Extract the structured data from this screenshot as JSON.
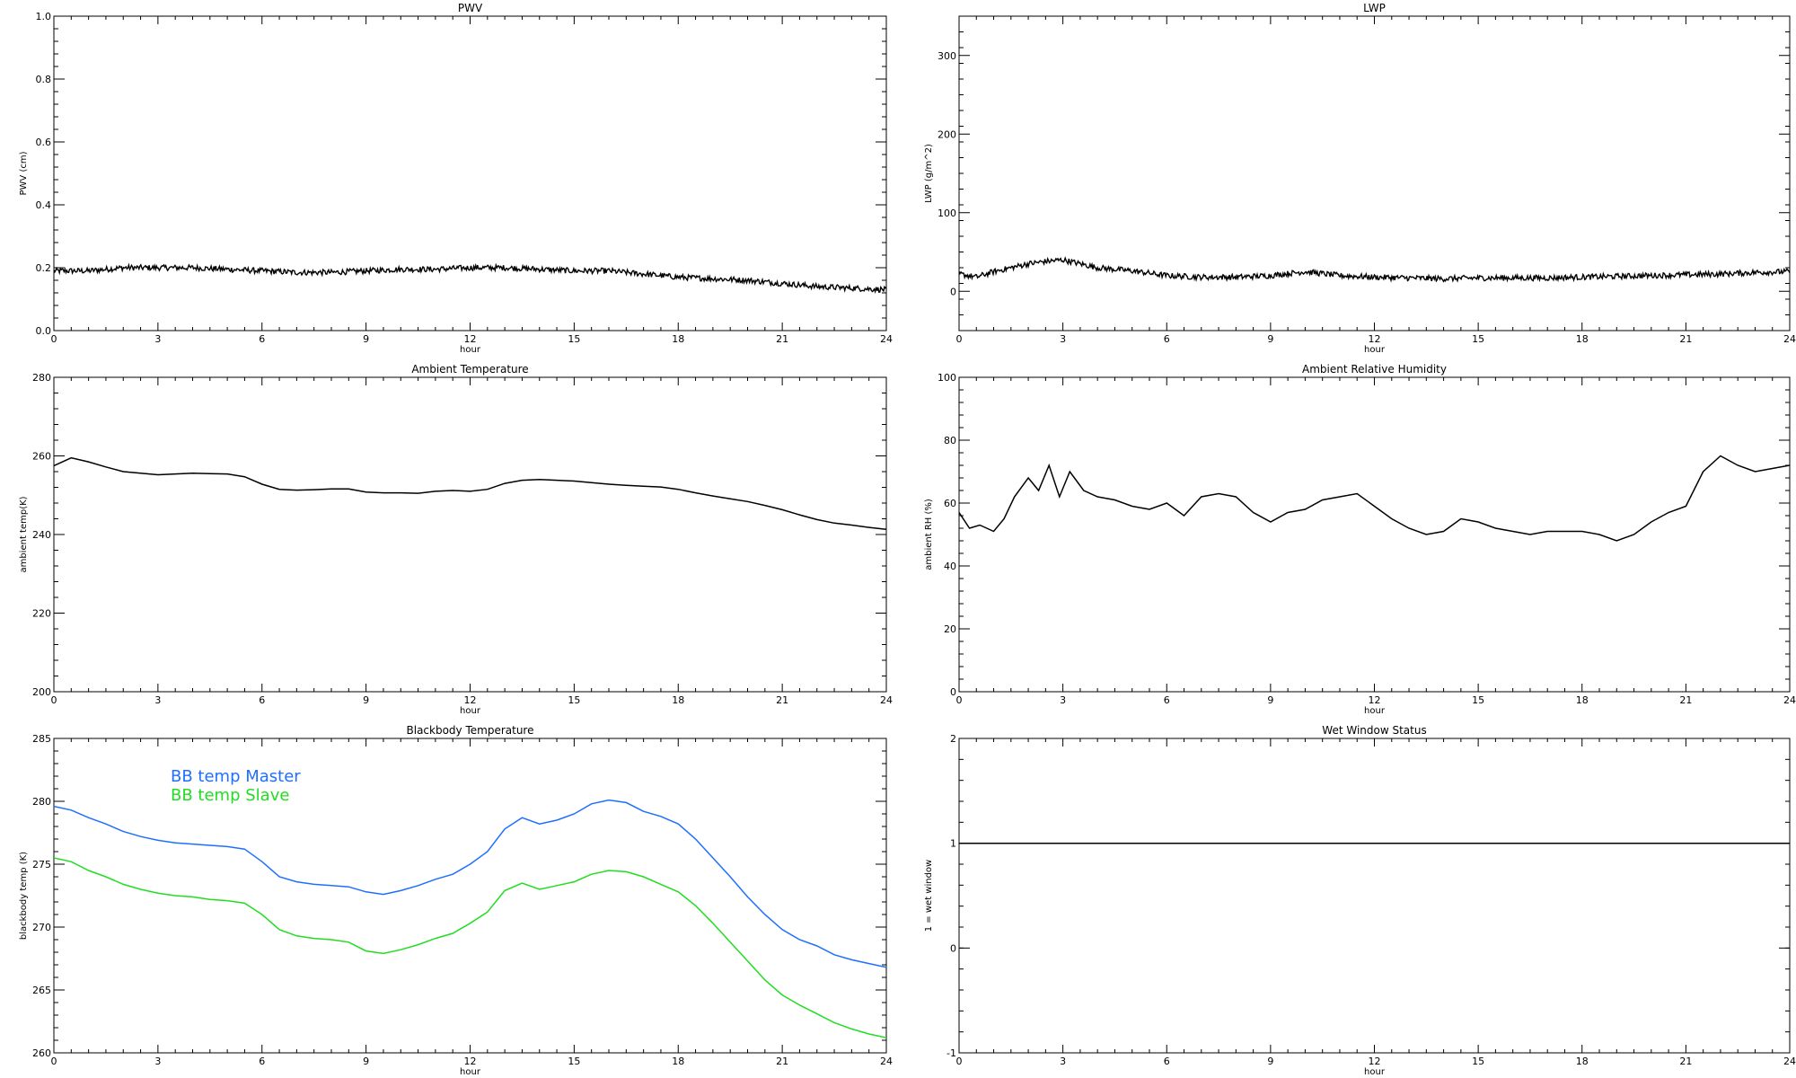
{
  "chart_data": [
    {
      "type": "line",
      "title": "PWV",
      "xlabel": "hour",
      "ylabel": "PWV (cm)",
      "xlim": [
        0,
        24
      ],
      "ylim": [
        0,
        1.0
      ],
      "xticks": [
        "0",
        "3",
        "6",
        "9",
        "12",
        "15",
        "18",
        "21",
        "24"
      ],
      "yticks": [
        "0.0",
        "0.2",
        "0.4",
        "0.6",
        "0.8",
        "1.0"
      ],
      "noisy": true,
      "series": [
        {
          "color": "#000000",
          "x": [
            0,
            1,
            2,
            3,
            4,
            5,
            6,
            7,
            8,
            9,
            10,
            11,
            12,
            13,
            14,
            15,
            16,
            17,
            18,
            19,
            20,
            21,
            22,
            23,
            24
          ],
          "y": [
            0.19,
            0.19,
            0.2,
            0.2,
            0.2,
            0.195,
            0.19,
            0.185,
            0.185,
            0.19,
            0.195,
            0.195,
            0.2,
            0.2,
            0.195,
            0.19,
            0.19,
            0.18,
            0.17,
            0.165,
            0.16,
            0.15,
            0.14,
            0.135,
            0.13
          ]
        }
      ]
    },
    {
      "type": "line",
      "title": "LWP",
      "xlabel": "hour",
      "ylabel": "LWP (g/m^2)",
      "xlim": [
        0,
        24
      ],
      "ylim": [
        -50,
        350
      ],
      "xticks": [
        "0",
        "3",
        "6",
        "9",
        "12",
        "15",
        "18",
        "21",
        "24"
      ],
      "yticks": [
        "0",
        "100",
        "200",
        "300"
      ],
      "noisy": true,
      "series": [
        {
          "color": "#000000",
          "x": [
            0,
            0.5,
            1,
            1.5,
            2,
            2.5,
            3,
            3.5,
            4,
            5,
            6,
            7,
            8,
            9,
            10,
            11,
            12,
            13,
            14,
            15,
            16,
            17,
            18,
            19,
            20,
            21,
            22,
            23,
            24
          ],
          "y": [
            22,
            18,
            25,
            30,
            35,
            38,
            40,
            35,
            30,
            26,
            20,
            18,
            18,
            20,
            25,
            20,
            18,
            17,
            16,
            17,
            17,
            17,
            18,
            19,
            20,
            21,
            22,
            24,
            25
          ]
        }
      ]
    },
    {
      "type": "line",
      "title": "Ambient Temperature",
      "xlabel": "hour",
      "ylabel": "ambient temp(K)",
      "xlim": [
        0,
        24
      ],
      "ylim": [
        200,
        280
      ],
      "xticks": [
        "0",
        "3",
        "6",
        "9",
        "12",
        "15",
        "18",
        "21",
        "24"
      ],
      "yticks": [
        "200",
        "220",
        "240",
        "260",
        "280"
      ],
      "noisy": false,
      "series": [
        {
          "color": "#000000",
          "x": [
            0,
            0.5,
            1,
            1.5,
            2,
            2.5,
            3,
            3.5,
            4,
            4.5,
            5,
            5.5,
            6,
            6.5,
            7,
            7.5,
            8,
            8.5,
            9,
            9.5,
            10,
            10.5,
            11,
            11.5,
            12,
            12.5,
            13,
            13.5,
            14,
            14.5,
            15,
            15.5,
            16,
            16.5,
            17,
            17.5,
            18,
            18.5,
            19,
            19.5,
            20,
            20.5,
            21,
            21.5,
            22,
            22.5,
            23,
            23.5,
            24
          ],
          "y": [
            257.5,
            259.5,
            258.5,
            257.2,
            256,
            255.6,
            255.2,
            255.4,
            255.6,
            255.5,
            255.4,
            254.7,
            252.8,
            251.5,
            251.3,
            251.4,
            251.6,
            251.6,
            250.8,
            250.6,
            250.6,
            250.5,
            251,
            251.2,
            251,
            251.5,
            253,
            253.8,
            254,
            253.8,
            253.6,
            253.2,
            252.8,
            252.5,
            252.3,
            252.1,
            251.5,
            250.6,
            249.8,
            249.1,
            248.4,
            247.4,
            246.3,
            245,
            243.8,
            242.9,
            242.4,
            241.8,
            241.3
          ]
        }
      ]
    },
    {
      "type": "line",
      "title": "Ambient Relative Humidity",
      "xlabel": "hour",
      "ylabel": "ambient RH (%)",
      "xlim": [
        0,
        24
      ],
      "ylim": [
        0,
        100
      ],
      "xticks": [
        "0",
        "3",
        "6",
        "9",
        "12",
        "15",
        "18",
        "21",
        "24"
      ],
      "yticks": [
        "0",
        "20",
        "40",
        "60",
        "80",
        "100"
      ],
      "noisy": false,
      "series": [
        {
          "color": "#000000",
          "x": [
            0,
            0.3,
            0.6,
            1,
            1.3,
            1.6,
            2,
            2.3,
            2.6,
            2.9,
            3.2,
            3.6,
            4,
            4.5,
            5,
            5.5,
            6,
            6.5,
            7,
            7.5,
            8,
            8.5,
            9,
            9.5,
            10,
            10.5,
            11,
            11.5,
            12,
            12.5,
            13,
            13.5,
            14,
            14.5,
            15,
            15.5,
            16,
            16.5,
            17,
            17.5,
            18,
            18.5,
            19,
            19.5,
            20,
            20.5,
            21,
            21.5,
            22,
            22.5,
            23,
            23.5,
            24
          ],
          "y": [
            57,
            52,
            53,
            51,
            55,
            62,
            68,
            64,
            72,
            62,
            70,
            64,
            62,
            61,
            59,
            58,
            60,
            56,
            62,
            63,
            62,
            57,
            54,
            57,
            58,
            61,
            62,
            63,
            59,
            55,
            52,
            50,
            51,
            55,
            54,
            52,
            51,
            50,
            51,
            51,
            51,
            50,
            48,
            50,
            54,
            57,
            59,
            70,
            75,
            72,
            70,
            71,
            72
          ]
        }
      ]
    },
    {
      "type": "line",
      "title": "Blackbody Temperature",
      "xlabel": "hour",
      "ylabel": "blackbody temp (K)",
      "xlim": [
        0,
        24
      ],
      "ylim": [
        260,
        285
      ],
      "xticks": [
        "0",
        "3",
        "6",
        "9",
        "12",
        "15",
        "18",
        "21",
        "24"
      ],
      "yticks": [
        "260",
        "265",
        "270",
        "275",
        "280",
        "285"
      ],
      "noisy": false,
      "legend": "upper-left",
      "series": [
        {
          "name": "BB temp Master",
          "color": "#1f6fff",
          "x": [
            0,
            0.5,
            1,
            1.5,
            2,
            2.5,
            3,
            3.5,
            4,
            4.5,
            5,
            5.5,
            6,
            6.5,
            7,
            7.5,
            8,
            8.5,
            9,
            9.5,
            10,
            10.5,
            11,
            11.5,
            12,
            12.5,
            13,
            13.5,
            14,
            14.5,
            15,
            15.5,
            16,
            16.5,
            17,
            17.5,
            18,
            18.5,
            19,
            19.5,
            20,
            20.5,
            21,
            21.5,
            22,
            22.5,
            23,
            23.5,
            24
          ],
          "y": [
            279.6,
            279.3,
            278.7,
            278.2,
            277.6,
            277.2,
            276.9,
            276.7,
            276.6,
            276.5,
            276.4,
            276.2,
            275.2,
            274,
            273.6,
            273.4,
            273.3,
            273.2,
            272.8,
            272.6,
            272.9,
            273.3,
            273.8,
            274.2,
            275,
            276,
            277.8,
            278.7,
            278.2,
            278.5,
            279,
            279.8,
            280.1,
            279.9,
            279.2,
            278.8,
            278.2,
            277,
            275.5,
            274,
            272.4,
            271,
            269.8,
            269,
            268.5,
            267.8,
            267.4,
            267.1,
            266.8
          ]
        },
        {
          "name": "BB temp Slave",
          "color": "#22dd22",
          "x": [
            0,
            0.5,
            1,
            1.5,
            2,
            2.5,
            3,
            3.5,
            4,
            4.5,
            5,
            5.5,
            6,
            6.5,
            7,
            7.5,
            8,
            8.5,
            9,
            9.5,
            10,
            10.5,
            11,
            11.5,
            12,
            12.5,
            13,
            13.5,
            14,
            14.5,
            15,
            15.5,
            16,
            16.5,
            17,
            17.5,
            18,
            18.5,
            19,
            19.5,
            20,
            20.5,
            21,
            21.5,
            22,
            22.5,
            23,
            23.5,
            24
          ],
          "y": [
            275.5,
            275.2,
            274.5,
            274,
            273.4,
            273,
            272.7,
            272.5,
            272.4,
            272.2,
            272.1,
            271.9,
            271,
            269.8,
            269.3,
            269.1,
            269,
            268.8,
            268.1,
            267.9,
            268.2,
            268.6,
            269.1,
            269.5,
            270.3,
            271.2,
            272.9,
            273.5,
            273,
            273.3,
            273.6,
            274.2,
            274.5,
            274.4,
            274,
            273.4,
            272.8,
            271.7,
            270.3,
            268.8,
            267.3,
            265.8,
            264.6,
            263.8,
            263.1,
            262.4,
            261.9,
            261.5,
            261.2
          ]
        }
      ]
    },
    {
      "type": "line",
      "title": "Wet Window Status",
      "xlabel": "hour",
      "ylabel": "1 = wet window",
      "xlim": [
        0,
        24
      ],
      "ylim": [
        -1,
        2
      ],
      "xticks": [
        "0",
        "3",
        "6",
        "9",
        "12",
        "15",
        "18",
        "21",
        "24"
      ],
      "yticks": [
        "-1",
        "0",
        "1",
        "2"
      ],
      "noisy": false,
      "series": [
        {
          "color": "#000000",
          "x": [
            0,
            24
          ],
          "y": [
            1,
            1
          ]
        }
      ]
    }
  ]
}
